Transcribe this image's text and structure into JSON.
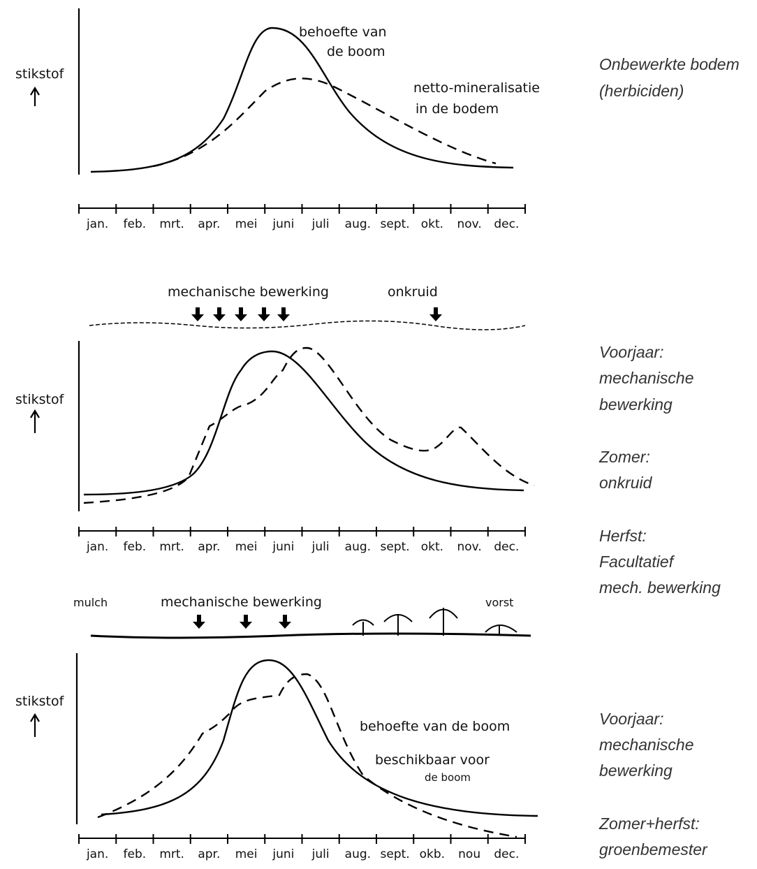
{
  "panels": [
    {
      "y_label": "stikstof",
      "labels": [
        "behoefte van",
        "de boom",
        "netto-mineralisatie",
        "in  de bodem"
      ],
      "months": [
        "jan.",
        "feb.",
        "mrt.",
        "apr.",
        "mei",
        "juni",
        "juli",
        "aug.",
        "sept.",
        "okt.",
        "nov.",
        "dec."
      ],
      "side_text": [
        "Onbewerkte bodem",
        "(herbiciden)"
      ]
    },
    {
      "y_label": "stikstof",
      "top_labels": [
        "mechanische bewerking",
        "onkruid"
      ],
      "months": [
        "jan.",
        "feb.",
        "mrt.",
        "apr.",
        "mei",
        "juni",
        "juli",
        "aug.",
        "sept.",
        "okt.",
        "nov.",
        "dec."
      ],
      "side_text": [
        "Voorjaar:",
        "mechanische",
        "bewerking",
        "Zomer:",
        "onkruid",
        "Herfst:",
        "Facultatief",
        "mech. bewerking"
      ]
    },
    {
      "y_label": "stikstof",
      "top_labels": [
        "mulch",
        "mechanische bewerking",
        "vorst"
      ],
      "labels": [
        "behoefte van de boom",
        "beschikbaar voor",
        "de boom"
      ],
      "months": [
        "jan.",
        "feb.",
        "mrt.",
        "apr.",
        "mei",
        "juni",
        "juli",
        "aug.",
        "sept.",
        "okb.",
        "nou",
        "dec."
      ],
      "side_text": [
        "Voorjaar:",
        "mechanische",
        "bewerking",
        "Zomer+herfst:",
        "groenbemester"
      ]
    }
  ]
}
